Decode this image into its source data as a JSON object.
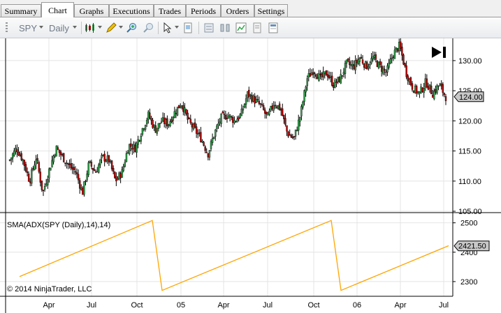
{
  "tabs": [
    "Summary",
    "Chart",
    "Graphs",
    "Executions",
    "Trades",
    "Periods",
    "Orders",
    "Settings"
  ],
  "active_tab": "Chart",
  "toolbar": {
    "symbol": "SPY",
    "interval": "Daily"
  },
  "price_panel": {
    "y_ticks": [
      "130.00",
      "125.00",
      "120.00",
      "115.00",
      "110.00",
      "105.00"
    ],
    "last_price_label": "124.00",
    "price_up_color": "#2fa64a",
    "price_down_color": "#c00000"
  },
  "indicator_panel": {
    "title": "SMA(ADX(SPY (Daily),14),14)",
    "y_ticks": [
      "2500",
      "2400",
      "2300"
    ],
    "last_value_label": "2421.50",
    "line_color": "#ffa500"
  },
  "x_ticks": [
    "Apr",
    "Jul",
    "Oct",
    "05",
    "Apr",
    "Jul",
    "Oct",
    "06",
    "Apr",
    "Jul"
  ],
  "copyright": "© 2014 NinjaTrader, LLC",
  "chart_data": [
    {
      "type": "line",
      "xlabel": "",
      "ylabel": "",
      "ylim": [
        105,
        133
      ],
      "x_ticks": [
        "Apr",
        "Jul",
        "Oct",
        "05",
        "Apr",
        "Jul",
        "Oct",
        "06",
        "Apr",
        "Jul"
      ],
      "series": [
        {
          "values": [
            113.5,
            115.5,
            113.5,
            110,
            114,
            108,
            112,
            115.5,
            114,
            112.5,
            111.5,
            108,
            113,
            111.5,
            114,
            113.5,
            110,
            111.5,
            116,
            115.5,
            118.5,
            121,
            118.5,
            120,
            119.5,
            121.5,
            123,
            120,
            118.5,
            117,
            114.5,
            118,
            120.5,
            121,
            120,
            121,
            124.5,
            123.5,
            122.5,
            120.5,
            123,
            122,
            118,
            117,
            121,
            127,
            128.5,
            127,
            128,
            126,
            127,
            129.5,
            129,
            130.5,
            129,
            130.5,
            129,
            128,
            131,
            132.5,
            128,
            125.5,
            124.5,
            126.5,
            124.5,
            126,
            124
          ]
        }
      ]
    },
    {
      "type": "line",
      "xlabel": "",
      "ylabel": "",
      "ylim": [
        2250,
        2530
      ],
      "series": [
        {
          "values": [
            2317,
            2508,
            2270,
            2508,
            2270,
            2422
          ]
        }
      ]
    }
  ]
}
